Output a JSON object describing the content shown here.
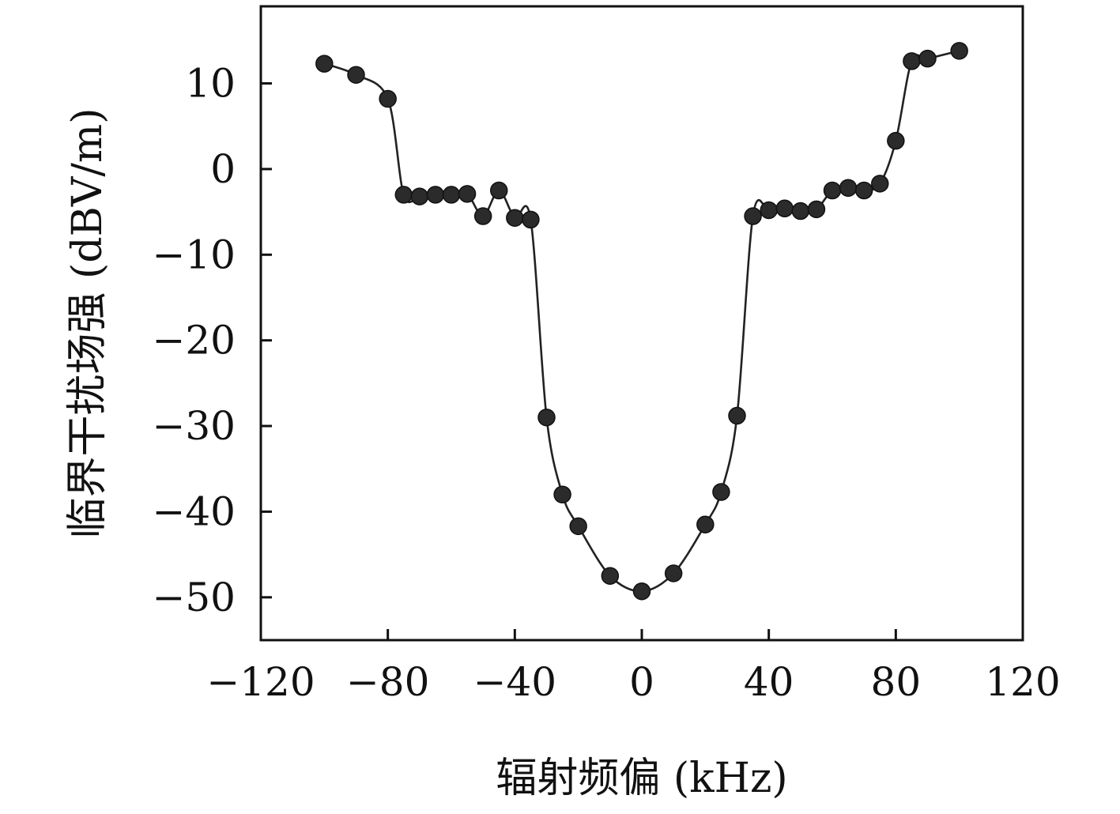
{
  "chart_data": {
    "type": "line",
    "xlabel": "辐射频偏 (kHz)",
    "ylabel": "临界干扰场强 (dBV/m)",
    "xlim": [
      -120,
      120
    ],
    "ylim": [
      -55,
      19
    ],
    "xticks": [
      -120,
      -80,
      -40,
      0,
      40,
      80,
      120
    ],
    "yticks": [
      -50,
      -40,
      -30,
      -20,
      -10,
      0,
      10
    ],
    "xtick_labels": [
      "−120",
      "−80",
      "−40",
      "0",
      "40",
      "80",
      "120"
    ],
    "ytick_labels": [
      "−50",
      "−40",
      "−30",
      "−20",
      "−10",
      "0",
      "10"
    ],
    "grid": false,
    "series": [
      {
        "x": [
          -100,
          -90,
          -80,
          -75,
          -70,
          -65,
          -60,
          -55,
          -50,
          -45,
          -40,
          -35,
          -30,
          -25,
          -20,
          -10,
          0,
          10,
          20,
          25,
          30,
          35,
          40,
          45,
          50,
          55,
          60,
          65,
          70,
          75,
          80,
          85,
          90,
          100
        ],
        "y": [
          12.3,
          11.0,
          8.2,
          -3.0,
          -3.2,
          -3.0,
          -3.0,
          -2.9,
          -5.5,
          -2.5,
          -5.7,
          -5.9,
          -29.0,
          -38.0,
          -41.7,
          -47.5,
          -49.3,
          -47.2,
          -41.5,
          -37.7,
          -28.8,
          -5.5,
          -4.8,
          -4.6,
          -4.9,
          -4.7,
          -2.5,
          -2.2,
          -2.5,
          -1.7,
          3.3,
          12.6,
          12.9,
          13.8
        ]
      }
    ]
  }
}
